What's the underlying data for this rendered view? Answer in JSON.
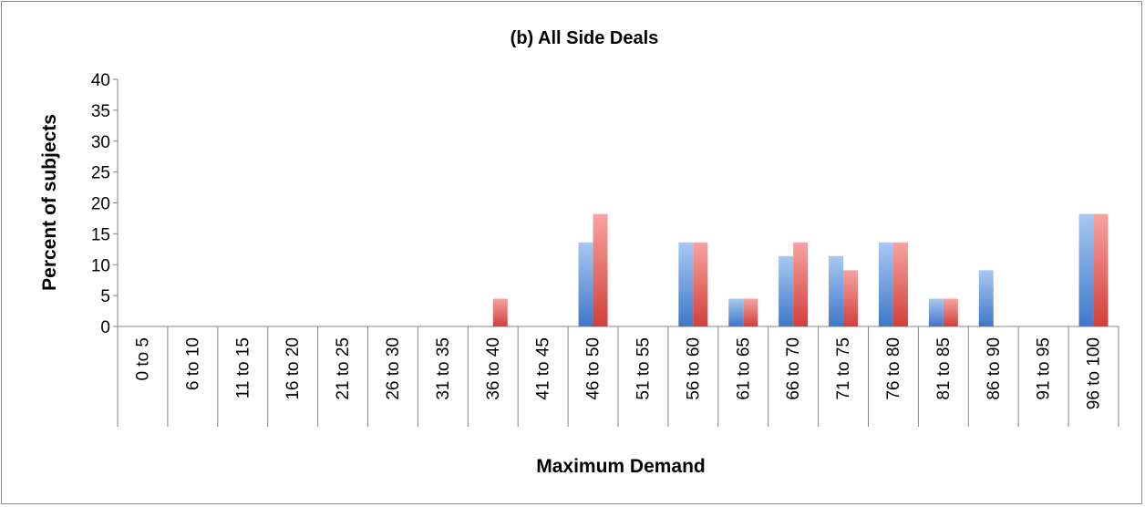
{
  "chart_data": {
    "type": "bar",
    "title": "(b) All Side Deals",
    "xlabel": "Maximum Demand",
    "ylabel": "Percent of subjects",
    "ylim": [
      0,
      40
    ],
    "yticks": [
      0,
      5,
      10,
      15,
      20,
      25,
      30,
      35,
      40
    ],
    "grid": false,
    "legend": "none",
    "categories": [
      "0 to 5",
      "6 to 10",
      "11 to 15",
      "16 to 20",
      "21 to 25",
      "26 to 30",
      "31 to 35",
      "36 to 40",
      "41 to 45",
      "46 to 50",
      "51 to 55",
      "56 to 60",
      "61 to 65",
      "66 to 70",
      "71 to 75",
      "76 to 80",
      "81 to 85",
      "86 to 90",
      "91 to 95",
      "96 to 100"
    ],
    "series": [
      {
        "color": "#4f81bd",
        "values": [
          0,
          0,
          0,
          0,
          0,
          0,
          0,
          0,
          0,
          13.6,
          0,
          13.6,
          4.5,
          11.4,
          11.4,
          13.6,
          4.5,
          9.1,
          0,
          18.2
        ]
      },
      {
        "color": "#c0504d",
        "values": [
          0,
          0,
          0,
          0,
          0,
          0,
          0,
          4.5,
          0,
          18.2,
          0,
          13.6,
          4.5,
          13.6,
          9.1,
          13.6,
          4.5,
          0,
          0,
          18.2
        ]
      }
    ]
  }
}
